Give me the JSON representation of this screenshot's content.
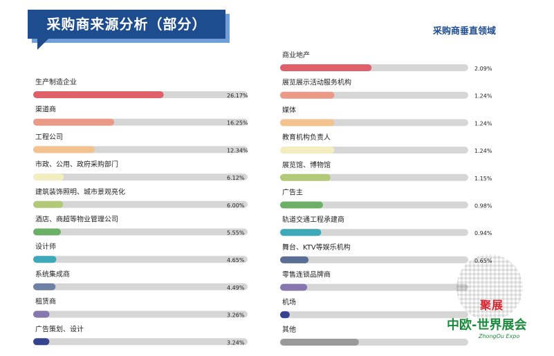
{
  "title": "采购商来源分析（部分）",
  "subtitle": "采购商垂直领域",
  "watermark": {
    "top": "聚展",
    "main": "中欧-世界展会",
    "sub": "ZhongOu Expo"
  },
  "chart_data": [
    {
      "type": "bar",
      "orientation": "horizontal",
      "title": "采购商来源分析（部分）",
      "categories": [
        "生产制造企业",
        "渠道商",
        "工程公司",
        "市政、公用、政府采购部门",
        "建筑装饰照明、城市景观亮化",
        "酒店、商超等物业管理公司",
        "设计师",
        "系统集成商",
        "租赁商",
        "广告策划、设计"
      ],
      "values": [
        26.17,
        16.25,
        12.34,
        6.12,
        6.0,
        5.55,
        4.65,
        4.49,
        3.26,
        3.24
      ],
      "value_labels": [
        "26.17%",
        "16.25%",
        "12.34%",
        "6.12%",
        "6.00%",
        "5.55%",
        "4.65%",
        "4.49%",
        "3.26%",
        "3.24%"
      ],
      "colors": [
        "#e0606a",
        "#ea9a86",
        "#f3c28f",
        "#f2eec0",
        "#b2c978",
        "#6cb068",
        "#3eaab9",
        "#6e82a4",
        "#8677af",
        "#36448f"
      ],
      "xlim": [
        0,
        43
      ]
    },
    {
      "type": "bar",
      "orientation": "horizontal",
      "title": "采购商垂直领域",
      "categories": [
        "商业地产",
        "展览展示活动服务机构",
        "媒体",
        "教育机构负责人",
        "展览馆、博物馆",
        "广告主",
        "轨道交通工程承建商",
        "舞台、KTV等娱乐机构",
        "零售连锁品牌商",
        "机场",
        "其他"
      ],
      "values": [
        2.09,
        1.24,
        1.24,
        1.24,
        1.15,
        0.98,
        0.94,
        0.65,
        0.62,
        0.22,
        1.8
      ],
      "value_labels": [
        "2.09%",
        "1.24%",
        "1.24%",
        "1.24%",
        "1.15%",
        "0.98%",
        "0.94%",
        "0.65%",
        "",
        "",
        ""
      ],
      "colors": [
        "#e0606a",
        "#ea9a86",
        "#f3c28f",
        "#f2eec0",
        "#b2c978",
        "#6cb068",
        "#3eaab9",
        "#5b6f96",
        "#8677af",
        "#36448f",
        "#9a9a9a"
      ],
      "xlim": [
        0,
        4.3
      ]
    }
  ]
}
